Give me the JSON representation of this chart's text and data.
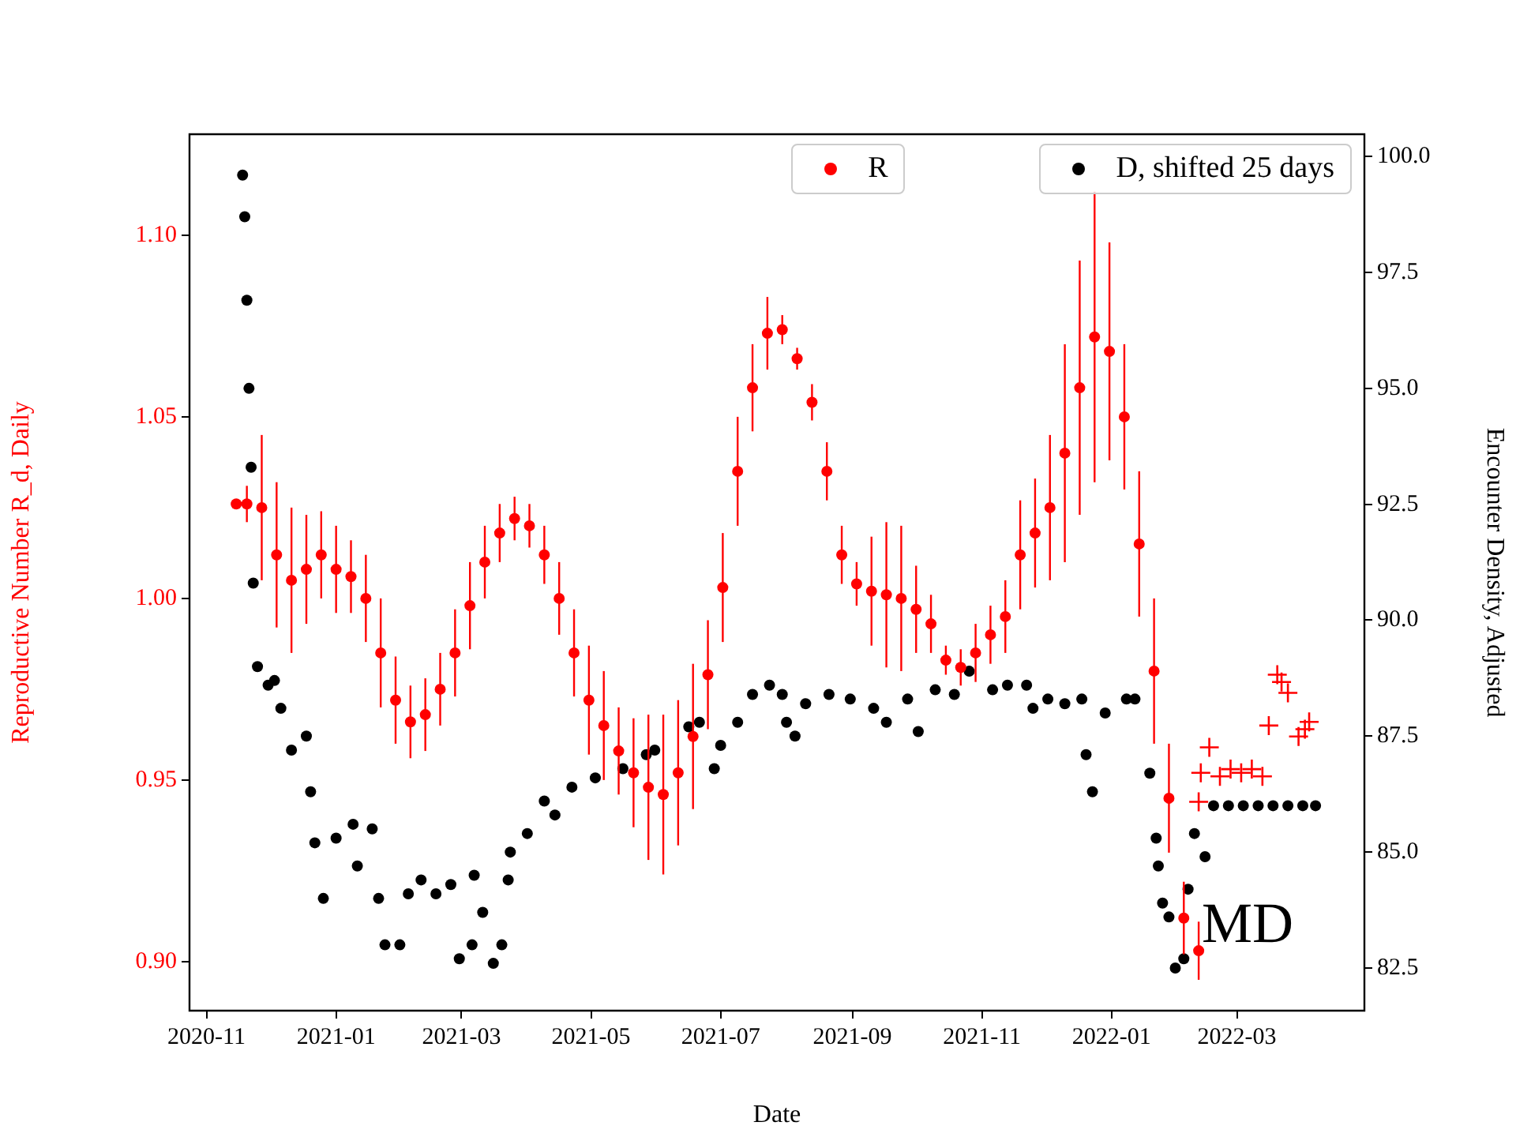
{
  "chart_data": {
    "type": "scatter",
    "xlabel": "Date",
    "ylabel": "Reproductive Number R_d, Daily",
    "y2label": "Encounter Density, Adjusted",
    "xlim": [
      "2020-10-24",
      "2022-04-30"
    ],
    "xticks": [
      "2020-11",
      "2021-01",
      "2021-03",
      "2021-05",
      "2021-07",
      "2021-09",
      "2021-11",
      "2022-01",
      "2022-03"
    ],
    "ylim": [
      0.8865,
      1.1278
    ],
    "yticks": [
      {
        "value": 0.9,
        "label": "0.90"
      },
      {
        "value": 0.95,
        "label": "0.95"
      },
      {
        "value": 1.0,
        "label": "1.00"
      },
      {
        "value": 1.05,
        "label": "1.05"
      },
      {
        "value": 1.1,
        "label": "1.10"
      }
    ],
    "y2lim": [
      81.58,
      100.48
    ],
    "y2ticks": [
      82.5,
      {
        "value": 85,
        "label": "85.0"
      },
      87.5,
      {
        "value": 90,
        "label": "90.0"
      },
      92.5,
      {
        "value": 95,
        "label": "95.0"
      },
      97.5,
      {
        "value": 100,
        "label": "100.0"
      }
    ],
    "grid": false,
    "legend": "top right",
    "annotations": [
      "MD"
    ],
    "series": [
      {
        "name": "R",
        "color": "#ff0000",
        "marker": "circle",
        "x": [
          "2020-11-15",
          "2020-11-20",
          "2020-11-27",
          "2020-12-04",
          "2020-12-11",
          "2020-12-18",
          "2020-12-25",
          "2021-01-01",
          "2021-01-08",
          "2021-01-15",
          "2021-01-22",
          "2021-01-29",
          "2021-02-05",
          "2021-02-12",
          "2021-02-19",
          "2021-02-26",
          "2021-03-05",
          "2021-03-12",
          "2021-03-19",
          "2021-03-26",
          "2021-04-02",
          "2021-04-09",
          "2021-04-16",
          "2021-04-23",
          "2021-04-30",
          "2021-05-07",
          "2021-05-14",
          "2021-05-21",
          "2021-05-28",
          "2021-06-04",
          "2021-06-11",
          "2021-06-18",
          "2021-06-25",
          "2021-07-02",
          "2021-07-09",
          "2021-07-16",
          "2021-07-23",
          "2021-07-30",
          "2021-08-06",
          "2021-08-13",
          "2021-08-20",
          "2021-08-27",
          "2021-09-03",
          "2021-09-10",
          "2021-09-17",
          "2021-09-24",
          "2021-10-01",
          "2021-10-08",
          "2021-10-15",
          "2021-10-22",
          "2021-10-29",
          "2021-11-05",
          "2021-11-12",
          "2021-11-19",
          "2021-11-26",
          "2021-12-03",
          "2021-12-10",
          "2021-12-17",
          "2021-12-24",
          "2021-12-31",
          "2022-01-07",
          "2022-01-14",
          "2022-01-21",
          "2022-01-28",
          "2022-02-04",
          "2022-02-11"
        ],
        "values": [
          1.026,
          1.026,
          1.025,
          1.012,
          1.005,
          1.008,
          1.012,
          1.008,
          1.006,
          1.0,
          0.985,
          0.972,
          0.966,
          0.968,
          0.975,
          0.985,
          0.998,
          1.01,
          1.018,
          1.022,
          1.02,
          1.012,
          1.0,
          0.985,
          0.972,
          0.965,
          0.958,
          0.952,
          0.948,
          0.946,
          0.952,
          0.962,
          0.979,
          1.003,
          1.035,
          1.058,
          1.073,
          1.074,
          1.066,
          1.054,
          1.035,
          1.012,
          1.004,
          1.002,
          1.001,
          1.0,
          0.997,
          0.993,
          0.983,
          0.981,
          0.985,
          0.99,
          0.995,
          1.012,
          1.018,
          1.025,
          1.04,
          1.058,
          1.072,
          1.068,
          1.05,
          1.015,
          0.98,
          0.945,
          0.912,
          0.903
        ],
        "errors": [
          null,
          0.005,
          0.02,
          0.02,
          0.02,
          0.015,
          0.012,
          0.012,
          0.01,
          0.012,
          0.015,
          0.012,
          0.01,
          0.01,
          0.01,
          0.012,
          0.012,
          0.01,
          0.008,
          0.006,
          0.006,
          0.008,
          0.01,
          0.012,
          0.015,
          0.015,
          0.012,
          0.015,
          0.02,
          0.022,
          0.02,
          0.02,
          0.015,
          0.015,
          0.015,
          0.012,
          0.01,
          0.004,
          0.003,
          0.005,
          0.008,
          0.008,
          0.006,
          0.015,
          0.02,
          0.02,
          0.012,
          0.008,
          0.004,
          0.005,
          0.008,
          0.008,
          0.01,
          0.015,
          0.015,
          0.02,
          0.03,
          0.035,
          0.04,
          0.03,
          0.02,
          0.02,
          0.02,
          0.015,
          0.01,
          0.008
        ]
      },
      {
        "color": "#ff0000",
        "marker": "cross",
        "x": [
          "2022-02-11",
          "2022-02-12",
          "2022-02-16",
          "2022-02-21",
          "2022-02-26",
          "2022-03-03",
          "2022-03-08",
          "2022-03-13",
          "2022-03-16",
          "2022-03-20",
          "2022-03-22",
          "2022-03-25",
          "2022-03-30",
          "2022-04-02",
          "2022-04-04"
        ],
        "values": [
          0.944,
          0.952,
          0.959,
          0.951,
          0.953,
          0.952,
          0.953,
          0.951,
          0.965,
          0.979,
          0.977,
          0.974,
          0.962,
          0.964,
          0.966
        ]
      },
      {
        "name": "D, shifted 25 days",
        "color": "#000000",
        "marker": "circle",
        "axis": "y2",
        "x": [
          "2020-11-18",
          "2020-11-19",
          "2020-11-20",
          "2020-11-21",
          "2020-11-22",
          "2020-11-23",
          "2020-11-25",
          "2020-11-30",
          "2020-12-03",
          "2020-12-06",
          "2020-12-11",
          "2020-12-18",
          "2020-12-20",
          "2020-12-22",
          "2020-12-26",
          "2021-01-01",
          "2021-01-09",
          "2021-01-11",
          "2021-01-18",
          "2021-01-21",
          "2021-01-24",
          "2021-01-31",
          "2021-02-04",
          "2021-02-10",
          "2021-02-17",
          "2021-02-24",
          "2021-02-28",
          "2021-03-06",
          "2021-03-07",
          "2021-03-11",
          "2021-03-16",
          "2021-03-20",
          "2021-03-23",
          "2021-03-24",
          "2021-04-01",
          "2021-04-09",
          "2021-04-14",
          "2021-04-22",
          "2021-05-03",
          "2021-05-16",
          "2021-05-27",
          "2021-05-31",
          "2021-06-16",
          "2021-06-21",
          "2021-06-28",
          "2021-07-01",
          "2021-07-09",
          "2021-07-16",
          "2021-07-24",
          "2021-07-30",
          "2021-08-01",
          "2021-08-05",
          "2021-08-10",
          "2021-08-21",
          "2021-08-31",
          "2021-09-11",
          "2021-09-17",
          "2021-09-27",
          "2021-10-02",
          "2021-10-10",
          "2021-10-19",
          "2021-10-26",
          "2021-11-06",
          "2021-11-13",
          "2021-11-22",
          "2021-11-25",
          "2021-12-02",
          "2021-12-10",
          "2021-12-18",
          "2021-12-20",
          "2021-12-23",
          "2021-12-29",
          "2022-01-08",
          "2022-01-12",
          "2022-01-19",
          "2022-01-22",
          "2022-01-23",
          "2022-01-25",
          "2022-01-28",
          "2022-01-31",
          "2022-02-04",
          "2022-02-06",
          "2022-02-09",
          "2022-02-14",
          "2022-02-18",
          "2022-02-25",
          "2022-03-04",
          "2022-03-11",
          "2022-03-18",
          "2022-03-25",
          "2022-04-01",
          "2022-04-07"
        ],
        "values": [
          99.6,
          98.7,
          96.9,
          95.0,
          93.3,
          90.8,
          89.0,
          88.6,
          88.7,
          88.1,
          87.2,
          87.5,
          86.3,
          85.2,
          84.0,
          85.3,
          85.6,
          84.7,
          85.5,
          84.0,
          83.0,
          83.0,
          84.1,
          84.4,
          84.1,
          84.3,
          82.7,
          83.0,
          84.5,
          83.7,
          82.6,
          83.0,
          84.4,
          85.0,
          85.4,
          86.1,
          85.8,
          86.4,
          86.6,
          86.8,
          87.1,
          87.2,
          87.7,
          87.8,
          86.8,
          87.3,
          87.8,
          88.4,
          88.6,
          88.4,
          87.8,
          87.5,
          88.2,
          88.4,
          88.3,
          88.1,
          87.8,
          88.3,
          87.6,
          88.5,
          88.4,
          88.9,
          88.5,
          88.6,
          88.6,
          88.1,
          88.3,
          88.2,
          88.3,
          87.1,
          86.3,
          88.0,
          88.3,
          88.3,
          86.7,
          85.3,
          84.7,
          83.9,
          83.6,
          82.5,
          82.7,
          84.2,
          85.4,
          84.9,
          86.0,
          86.0,
          86.0,
          86.0,
          86.0,
          86.0,
          86.0,
          86.0
        ]
      }
    ]
  }
}
